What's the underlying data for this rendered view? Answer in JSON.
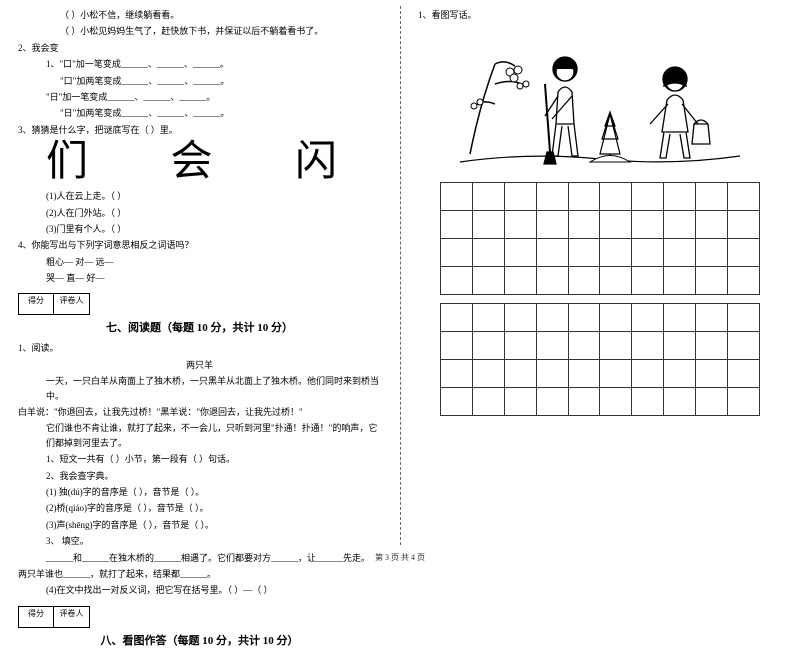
{
  "left": {
    "l1_a": "（    ）小松不信，继续躺看看。",
    "l1_b": "（    ）小松见妈妈生气了，赶快放下书，并保证以后不躺着看书了。",
    "q2": "2、我会变",
    "q2_1": "1、\"口\"加一笔变成______、______、______。",
    "q2_2": "\"口\"加两笔变成______、______、______。",
    "q2_3": "\"日\"加一笔变成______、______、______。",
    "q2_4": "\"日\"加两笔变成______、______、______。",
    "q3": "3、猜猜是什么字，把谜底写在（        ）里。",
    "big": "们  会  闪",
    "q3_1": "(1)人在云上走。（        ）",
    "q3_2": "(2)人在门外站。（        ）",
    "q3_3": "(3)门里有个人。（        ）",
    "q4": "4、你能写出与下列字词意思相反之词语吗？",
    "q4_1": "粗心—            对—            远—",
    "q4_2": "哭—              直—            好—",
    "score_l": "得分",
    "score_r": "评卷人",
    "sec7": "七、阅读题（每题 10 分，共计 10 分）",
    "r1": "1、阅读。",
    "r_title": "两只羊",
    "r_p1": "一天，一只白羊从南面上了独木桥，一只黑羊从北面上了独木桥。他们同时来到桥当中。",
    "r_p2": "白羊说：\"你退回去，让我先过桥！\"黑羊说：\"你退回去，让我先过桥！\"",
    "r_p3": "它们谁也不肯让谁，就打了起来，不一会儿，只听到河里\"扑通！扑通！\"的响声，它们都掉到河里去了。",
    "r_q1": "1、短文一共有（    ）小节，第一段有（     ）句话。",
    "r_q2": "2、我会查字典。",
    "r_q2_1": "(1) 独(dú)字的音序是（    ），音节是（    ）。",
    "r_q2_2": "(2)桥(qiáo)字的音序是（    ），音节是（    ）。",
    "r_q2_3": "(3)声(shēng)字的音序是（    ），音节是（    ）。",
    "r_q3": "3、 填空。",
    "r_q3_1": "______和______在独木桥的______相遇了。它们都要对方______，让______先走。",
    "r_q3_2": "两只羊谁也______，就打了起来，结果都______。",
    "r_q4": "(4)在文中找出一对反义词，把它写在括号里。（      ）—（      ）",
    "sec8": "八、看图作答（每题 10 分，共计 10 分）"
  },
  "right": {
    "q1": "1、看图写话。"
  },
  "footer": "第 3 页  共 4 页",
  "style": {
    "page_bg": "#ffffff",
    "text_color": "#000000",
    "font_body": 9,
    "font_section": 11,
    "font_bigchar": 42,
    "grid_cols": 10,
    "grid_rows_block1": 4,
    "grid_rows_block2": 4,
    "grid_cell_border": "#333333",
    "divider_color": "#666666"
  }
}
